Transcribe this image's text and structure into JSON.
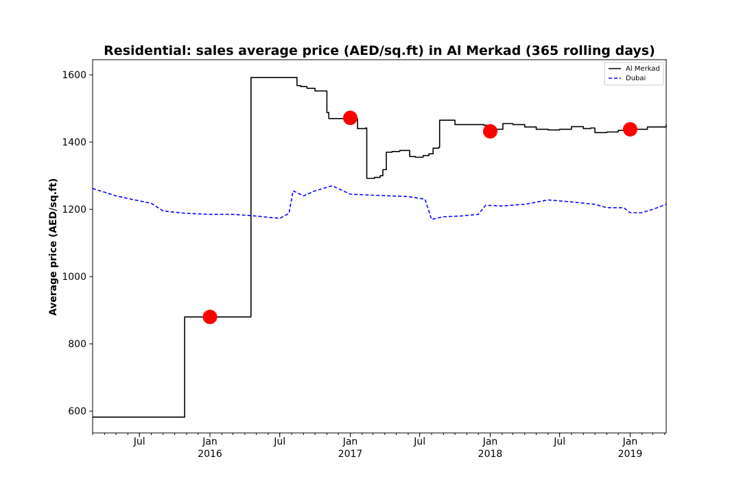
{
  "chart_data": {
    "type": "line",
    "title": "Residential: sales average price (AED/sq.ft) in Al Merkad (365 rolling days)",
    "ylabel": "Average price (AED/sq.ft)",
    "xlabel": "",
    "xlim": [
      "2015-03-01",
      "2019-04-05"
    ],
    "ylim": [
      535,
      1645
    ],
    "y_ticks": [
      600,
      800,
      1000,
      1200,
      1400,
      1600
    ],
    "x_ticks": [
      {
        "date": "2015-07-01",
        "label": "Jul",
        "sublabel": ""
      },
      {
        "date": "2016-01-01",
        "label": "Jan",
        "sublabel": "2016"
      },
      {
        "date": "2016-07-01",
        "label": "Jul",
        "sublabel": ""
      },
      {
        "date": "2017-01-01",
        "label": "Jan",
        "sublabel": "2017"
      },
      {
        "date": "2017-07-01",
        "label": "Jul",
        "sublabel": ""
      },
      {
        "date": "2018-01-01",
        "label": "Jan",
        "sublabel": "2018"
      },
      {
        "date": "2018-07-01",
        "label": "Jul",
        "sublabel": ""
      },
      {
        "date": "2019-01-01",
        "label": "Jan",
        "sublabel": "2019"
      }
    ],
    "legend_position": "top-right",
    "grid": false,
    "series": [
      {
        "name": "Al Merkad",
        "color": "#000000",
        "style": "solid",
        "step": true,
        "points": [
          [
            "2015-03-01",
            582
          ],
          [
            "2015-10-25",
            582
          ],
          [
            "2015-10-27",
            880
          ],
          [
            "2016-04-15",
            880
          ],
          [
            "2016-04-17",
            1592
          ],
          [
            "2016-08-10",
            1592
          ],
          [
            "2016-08-15",
            1568
          ],
          [
            "2016-08-25",
            1565
          ],
          [
            "2016-09-10",
            1560
          ],
          [
            "2016-10-01",
            1552
          ],
          [
            "2016-10-29",
            1552
          ],
          [
            "2016-11-01",
            1488
          ],
          [
            "2016-11-06",
            1470
          ],
          [
            "2017-01-10",
            1470
          ],
          [
            "2017-01-20",
            1440
          ],
          [
            "2017-02-10",
            1442
          ],
          [
            "2017-02-13",
            1292
          ],
          [
            "2017-03-05",
            1295
          ],
          [
            "2017-03-20",
            1300
          ],
          [
            "2017-03-27",
            1318
          ],
          [
            "2017-04-05",
            1370
          ],
          [
            "2017-04-20",
            1372
          ],
          [
            "2017-05-10",
            1375
          ],
          [
            "2017-06-01",
            1375
          ],
          [
            "2017-06-05",
            1357
          ],
          [
            "2017-06-20",
            1355
          ],
          [
            "2017-07-10",
            1360
          ],
          [
            "2017-07-25",
            1365
          ],
          [
            "2017-08-05",
            1382
          ],
          [
            "2017-08-20",
            1385
          ],
          [
            "2017-08-22",
            1465
          ],
          [
            "2017-09-20",
            1465
          ],
          [
            "2017-10-01",
            1452
          ],
          [
            "2017-12-15",
            1450
          ],
          [
            "2017-12-25",
            1438
          ],
          [
            "2018-02-01",
            1438
          ],
          [
            "2018-02-03",
            1455
          ],
          [
            "2018-03-01",
            1452
          ],
          [
            "2018-04-01",
            1445
          ],
          [
            "2018-05-01",
            1438
          ],
          [
            "2018-06-01",
            1436
          ],
          [
            "2018-07-01",
            1438
          ],
          [
            "2018-08-01",
            1446
          ],
          [
            "2018-09-01",
            1440
          ],
          [
            "2018-09-20",
            1442
          ],
          [
            "2018-10-01",
            1428
          ],
          [
            "2018-11-01",
            1430
          ],
          [
            "2018-12-01",
            1435
          ],
          [
            "2019-01-01",
            1438
          ],
          [
            "2019-02-15",
            1445
          ],
          [
            "2019-04-05",
            1453
          ]
        ]
      },
      {
        "name": "Dubai",
        "color": "#0000ff",
        "style": "dashed",
        "step": false,
        "points": [
          [
            "2015-03-01",
            1262
          ],
          [
            "2015-05-01",
            1240
          ],
          [
            "2015-07-01",
            1225
          ],
          [
            "2015-08-01",
            1218
          ],
          [
            "2015-09-01",
            1195
          ],
          [
            "2015-11-01",
            1188
          ],
          [
            "2016-01-01",
            1185
          ],
          [
            "2016-03-01",
            1185
          ],
          [
            "2016-05-01",
            1180
          ],
          [
            "2016-07-01",
            1173
          ],
          [
            "2016-07-25",
            1188
          ],
          [
            "2016-08-05",
            1255
          ],
          [
            "2016-09-01",
            1240
          ],
          [
            "2016-10-01",
            1255
          ],
          [
            "2016-11-15",
            1270
          ],
          [
            "2017-01-01",
            1245
          ],
          [
            "2017-03-01",
            1242
          ],
          [
            "2017-06-01",
            1238
          ],
          [
            "2017-07-15",
            1230
          ],
          [
            "2017-08-01",
            1170
          ],
          [
            "2017-09-01",
            1178
          ],
          [
            "2017-10-15",
            1180
          ],
          [
            "2017-12-01",
            1185
          ],
          [
            "2017-12-20",
            1212
          ],
          [
            "2018-02-01",
            1210
          ],
          [
            "2018-04-01",
            1215
          ],
          [
            "2018-06-01",
            1228
          ],
          [
            "2018-08-01",
            1222
          ],
          [
            "2018-10-01",
            1215
          ],
          [
            "2018-11-01",
            1205
          ],
          [
            "2018-12-15",
            1205
          ],
          [
            "2019-01-01",
            1190
          ],
          [
            "2019-02-01",
            1190
          ],
          [
            "2019-03-01",
            1200
          ],
          [
            "2019-04-05",
            1215
          ]
        ]
      }
    ],
    "markers": {
      "color": "#ff0000",
      "points": [
        [
          "2016-01-01",
          880
        ],
        [
          "2017-01-01",
          1472
        ],
        [
          "2018-01-01",
          1432
        ],
        [
          "2019-01-01",
          1438
        ]
      ]
    }
  }
}
